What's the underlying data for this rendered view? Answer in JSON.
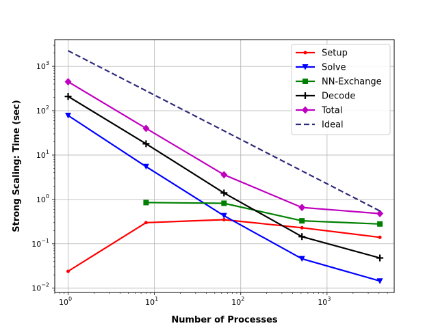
{
  "chart_data": {
    "type": "line",
    "xscale": "log",
    "yscale": "log",
    "xlabel": "Number of Processes",
    "ylabel": "Strong Scaling: Time (sec)",
    "xlim": [
      0.7,
      6000
    ],
    "ylim": [
      0.008,
      4000
    ],
    "grid": true,
    "legend_position": "top-right",
    "x_ticks": [
      {
        "value": 1,
        "base": "10",
        "exp": "0"
      },
      {
        "value": 10,
        "base": "10",
        "exp": "1"
      },
      {
        "value": 100,
        "base": "10",
        "exp": "2"
      },
      {
        "value": 1000,
        "base": "10",
        "exp": "3"
      }
    ],
    "y_ticks": [
      {
        "value": 0.01,
        "base": "10",
        "exp": "−2"
      },
      {
        "value": 0.1,
        "base": "10",
        "exp": "−1"
      },
      {
        "value": 1,
        "base": "10",
        "exp": "0"
      },
      {
        "value": 10,
        "base": "10",
        "exp": "1"
      },
      {
        "value": 100,
        "base": "10",
        "exp": "2"
      },
      {
        "value": 1000,
        "base": "10",
        "exp": "3"
      }
    ],
    "series": [
      {
        "name": "Setup",
        "color": "#ff0000",
        "marker": "dot",
        "dash": "solid",
        "points": [
          [
            1,
            0.024
          ],
          [
            8,
            0.3
          ],
          [
            64,
            0.35
          ],
          [
            512,
            0.23
          ],
          [
            4096,
            0.14
          ]
        ]
      },
      {
        "name": "Solve",
        "color": "#0000ff",
        "marker": "triangle-down",
        "dash": "solid",
        "points": [
          [
            1,
            78
          ],
          [
            8,
            5.5
          ],
          [
            64,
            0.43
          ],
          [
            512,
            0.046
          ],
          [
            4096,
            0.0145
          ]
        ]
      },
      {
        "name": "NN-Exchange",
        "color": "#008000",
        "marker": "square",
        "dash": "solid",
        "points": [
          [
            8,
            0.85
          ],
          [
            64,
            0.82
          ],
          [
            512,
            0.33
          ],
          [
            4096,
            0.28
          ]
        ]
      },
      {
        "name": "Decode",
        "color": "#000000",
        "marker": "plus",
        "dash": "solid",
        "points": [
          [
            1,
            210
          ],
          [
            8,
            18
          ],
          [
            64,
            1.4
          ],
          [
            512,
            0.145
          ],
          [
            4096,
            0.048
          ]
        ]
      },
      {
        "name": "Total",
        "color": "#bf00bf",
        "marker": "diamond",
        "dash": "solid",
        "points": [
          [
            1,
            450
          ],
          [
            8,
            40
          ],
          [
            64,
            3.6
          ],
          [
            512,
            0.66
          ],
          [
            4096,
            0.48
          ]
        ]
      },
      {
        "name": "Ideal",
        "color": "#2e2a7a",
        "marker": "none",
        "dash": "dashed",
        "points": [
          [
            1,
            2250
          ],
          [
            4096,
            0.55
          ]
        ]
      }
    ]
  }
}
